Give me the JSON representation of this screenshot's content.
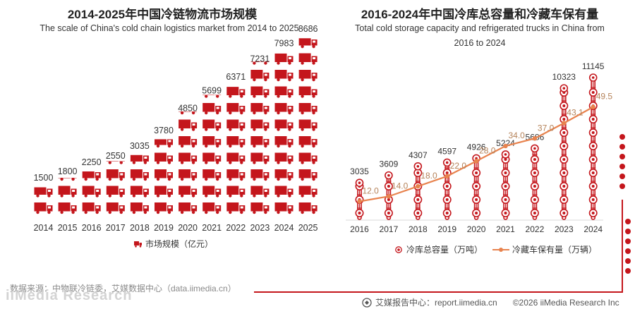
{
  "left": {
    "title": "2014-2025年中国冷链物流市场规模",
    "subtitle": "The scale of China's cold chain logistics market from 2014 to 2025",
    "legend": "市场规模（亿元）"
  },
  "right": {
    "title": "2016-2024年中国冷库总容量和冷藏车保有量",
    "subtitle_line1": "Total cold storage capacity and refrigerated trucks in China from",
    "subtitle_line2": "2016 to 2024",
    "legend_bar": "冷库总容量（万吨）",
    "legend_line": "冷藏车保有量（万辆）"
  },
  "footer": {
    "source": "数据来源：中物联冷链委，艾媒数据中心（data.iimedia.cn）",
    "watermark": "iiMedia Research",
    "center_label": "艾媒报告中心：report.iimedia.cn",
    "copyright": "©2026  iiMedia Research  Inc"
  },
  "colors": {
    "red": "#c4161c",
    "orange": "#e8834e",
    "orangeText": "#b5835a"
  },
  "chart_data": [
    {
      "type": "bar",
      "title": "2014-2025年中国冷链物流市场规模",
      "subtitle": "The scale of China's cold chain logistics market from 2014 to 2025",
      "categories": [
        "2014",
        "2015",
        "2016",
        "2017",
        "2018",
        "2019",
        "2020",
        "2021",
        "2022",
        "2023",
        "2024",
        "2025"
      ],
      "series": [
        {
          "name": "市场规模（亿元）",
          "values": [
            1500,
            1800,
            2250,
            2550,
            3035,
            3780,
            4850,
            5699,
            6371,
            7231,
            7983,
            8686
          ]
        }
      ],
      "ylim": [
        0,
        9000
      ]
    },
    {
      "type": "bar",
      "title": "2016-2024年中国冷库总容量和冷藏车保有量",
      "subtitle": "Total cold storage capacity and refrigerated trucks in China from 2016 to 2024",
      "categories": [
        "2016",
        "2017",
        "2018",
        "2019",
        "2020",
        "2021",
        "2022",
        "2023",
        "2024"
      ],
      "series": [
        {
          "name": "冷库总容量（万吨）",
          "type": "bar",
          "values": [
            3035,
            3609,
            4307,
            4597,
            4926,
            5224,
            5686,
            10323,
            11145
          ]
        },
        {
          "name": "冷藏车保有量（万辆）",
          "type": "line",
          "values": [
            12.0,
            14.0,
            18.0,
            22.0,
            28.0,
            34.0,
            37.0,
            43.1,
            49.5
          ]
        }
      ],
      "ylim_bar": [
        0,
        12000
      ],
      "ylim_line": [
        0,
        60
      ]
    }
  ]
}
